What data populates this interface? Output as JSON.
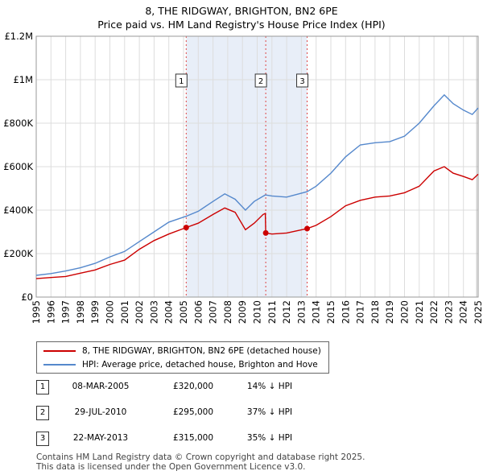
{
  "chart_data": {
    "type": "line",
    "title": "8, THE RIDGWAY, BRIGHTON, BN2 6PE",
    "subtitle": "Price paid vs. HM Land Registry's House Price Index (HPI)",
    "xlim": [
      1995,
      2025
    ],
    "ylim": [
      0,
      1200000
    ],
    "x_ticks": [
      "1995",
      "1996",
      "1997",
      "1998",
      "1999",
      "2000",
      "2001",
      "2002",
      "2003",
      "2004",
      "2005",
      "2006",
      "2007",
      "2008",
      "2009",
      "2010",
      "2011",
      "2012",
      "2013",
      "2014",
      "2015",
      "2016",
      "2017",
      "2018",
      "2019",
      "2020",
      "2021",
      "2022",
      "2023",
      "2024",
      "2025"
    ],
    "y_ticks": [
      {
        "value": 0,
        "label": "£0"
      },
      {
        "value": 200000,
        "label": "£200K"
      },
      {
        "value": 400000,
        "label": "£400K"
      },
      {
        "value": 600000,
        "label": "£600K"
      },
      {
        "value": 800000,
        "label": "£800K"
      },
      {
        "value": 1000000,
        "label": "£1M"
      },
      {
        "value": 1200000,
        "label": "£1.2M"
      }
    ],
    "grid": true,
    "series": [
      {
        "name": "8, THE RIDGWAY, BRIGHTON, BN2 6PE (detached house)",
        "color": "#cc0000",
        "points": [
          [
            1995,
            85000
          ],
          [
            1996,
            90000
          ],
          [
            1997,
            95000
          ],
          [
            1998,
            110000
          ],
          [
            1999,
            125000
          ],
          [
            2000,
            150000
          ],
          [
            2001,
            170000
          ],
          [
            2002,
            220000
          ],
          [
            2003,
            260000
          ],
          [
            2004,
            290000
          ],
          [
            2005.18,
            320000
          ],
          [
            2006,
            340000
          ],
          [
            2007,
            380000
          ],
          [
            2007.8,
            410000
          ],
          [
            2008.5,
            390000
          ],
          [
            2009.2,
            310000
          ],
          [
            2009.8,
            340000
          ],
          [
            2010.4,
            380000
          ],
          [
            2010.55,
            385000
          ],
          [
            2010.58,
            295000
          ],
          [
            2011,
            290000
          ],
          [
            2012,
            295000
          ],
          [
            2013.39,
            315000
          ],
          [
            2014,
            330000
          ],
          [
            2015,
            370000
          ],
          [
            2016,
            420000
          ],
          [
            2017,
            445000
          ],
          [
            2018,
            460000
          ],
          [
            2019,
            465000
          ],
          [
            2020,
            480000
          ],
          [
            2021,
            510000
          ],
          [
            2022,
            580000
          ],
          [
            2022.7,
            600000
          ],
          [
            2023.3,
            570000
          ],
          [
            2024,
            555000
          ],
          [
            2024.6,
            540000
          ],
          [
            2025,
            565000
          ]
        ]
      },
      {
        "name": "HPI: Average price, detached house, Brighton and Hove",
        "color": "#5588cc",
        "points": [
          [
            1995,
            100000
          ],
          [
            1996,
            108000
          ],
          [
            1997,
            120000
          ],
          [
            1998,
            135000
          ],
          [
            1999,
            155000
          ],
          [
            2000,
            185000
          ],
          [
            2001,
            210000
          ],
          [
            2002,
            255000
          ],
          [
            2003,
            300000
          ],
          [
            2004,
            345000
          ],
          [
            2005.18,
            372000
          ],
          [
            2006,
            395000
          ],
          [
            2007,
            440000
          ],
          [
            2007.8,
            475000
          ],
          [
            2008.5,
            450000
          ],
          [
            2009.2,
            400000
          ],
          [
            2009.8,
            440000
          ],
          [
            2010.55,
            470000
          ],
          [
            2011,
            465000
          ],
          [
            2012,
            460000
          ],
          [
            2013.39,
            485000
          ],
          [
            2014,
            510000
          ],
          [
            2015,
            570000
          ],
          [
            2016,
            645000
          ],
          [
            2017,
            700000
          ],
          [
            2018,
            710000
          ],
          [
            2019,
            715000
          ],
          [
            2020,
            740000
          ],
          [
            2021,
            800000
          ],
          [
            2022,
            880000
          ],
          [
            2022.7,
            930000
          ],
          [
            2023.3,
            890000
          ],
          [
            2024,
            860000
          ],
          [
            2024.6,
            840000
          ],
          [
            2025,
            870000
          ]
        ]
      }
    ],
    "sales": [
      {
        "label": "1",
        "x": 2005.18,
        "price": 320000,
        "date": "08-MAR-2005",
        "price_text": "£320,000",
        "hpi_text": "14% ↓ HPI"
      },
      {
        "label": "2",
        "x": 2010.58,
        "price": 295000,
        "date": "29-JUL-2010",
        "price_text": "£295,000",
        "hpi_text": "37% ↓ HPI"
      },
      {
        "label": "3",
        "x": 2013.39,
        "price": 315000,
        "date": "22-MAY-2013",
        "price_text": "£315,000",
        "hpi_text": "35% ↓ HPI"
      }
    ],
    "legend": [
      {
        "label": "8, THE RIDGWAY, BRIGHTON, BN2 6PE (detached house)",
        "color": "#cc0000"
      },
      {
        "label": "HPI: Average price, detached house, Brighton and Hove",
        "color": "#5588cc"
      }
    ],
    "shade_color": "#e8eef8"
  },
  "footer": {
    "line1": "Contains HM Land Registry data © Crown copyright and database right 2025.",
    "line2": "This data is licensed under the Open Government Licence v3.0."
  }
}
